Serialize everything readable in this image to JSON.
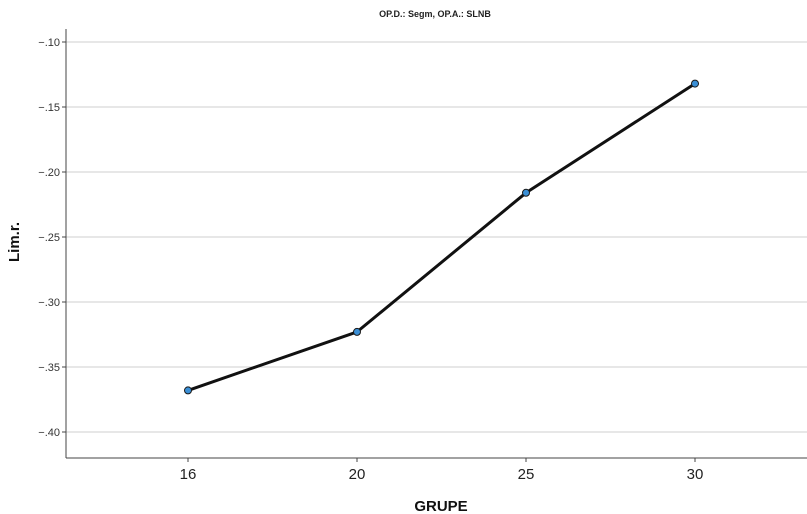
{
  "chart_data": {
    "type": "line",
    "title": "OP.D.: Segm, OP.A.: SLNB",
    "xlabel": "GRUPE",
    "ylabel": "Lim.r.",
    "categories": [
      "16",
      "20",
      "25",
      "30"
    ],
    "series": [
      {
        "values": [
          -0.368,
          -0.323,
          -0.216,
          -0.132
        ]
      }
    ],
    "ylim": [
      -0.42,
      -0.09
    ],
    "yticks": [
      -0.1,
      -0.15,
      -0.2,
      -0.25,
      -0.3,
      -0.35,
      -0.4
    ],
    "ytick_labels": [
      "−.10",
      "−.15",
      "−.20",
      "−.25",
      "−.30",
      "−.35",
      "−.40"
    ],
    "grid": "horizontal",
    "colors": {
      "line": "#111111",
      "marker_fill": "#3a8fd6",
      "marker_stroke": "#1a1a1a",
      "grid": "#cfcfcf",
      "axis": "#444444"
    }
  }
}
